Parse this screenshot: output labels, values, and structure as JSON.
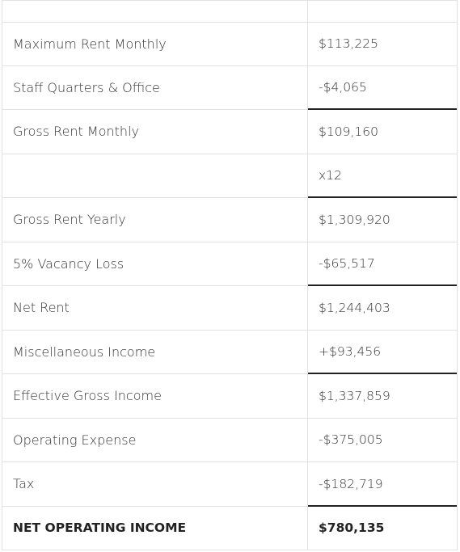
{
  "table": {
    "rows": [
      {
        "label": "Maximum Rent Monthly",
        "value": "$113,225"
      },
      {
        "label": "Staff Quarters & Office",
        "value": "-$4,065"
      },
      {
        "label": "Gross Rent Monthly",
        "value": "$109,160"
      },
      {
        "value": "x12"
      },
      {
        "label": "Gross Rent Yearly",
        "value": "$1,309,920"
      },
      {
        "label": "5% Vacancy Loss",
        "value": "-$65,517"
      },
      {
        "label": "Net Rent",
        "value": "$1,244,403"
      },
      {
        "label": "Miscellaneous Income",
        "value": "+$93,456"
      },
      {
        "label": "Effective Gross Income",
        "value": "$1,337,859"
      },
      {
        "label": "Operating Expense",
        "value": "-$375,005"
      },
      {
        "label": "Tax",
        "value": "-$182,719"
      },
      {
        "label": "NET OPERATING INCOME",
        "value": "$780,135"
      }
    ]
  }
}
